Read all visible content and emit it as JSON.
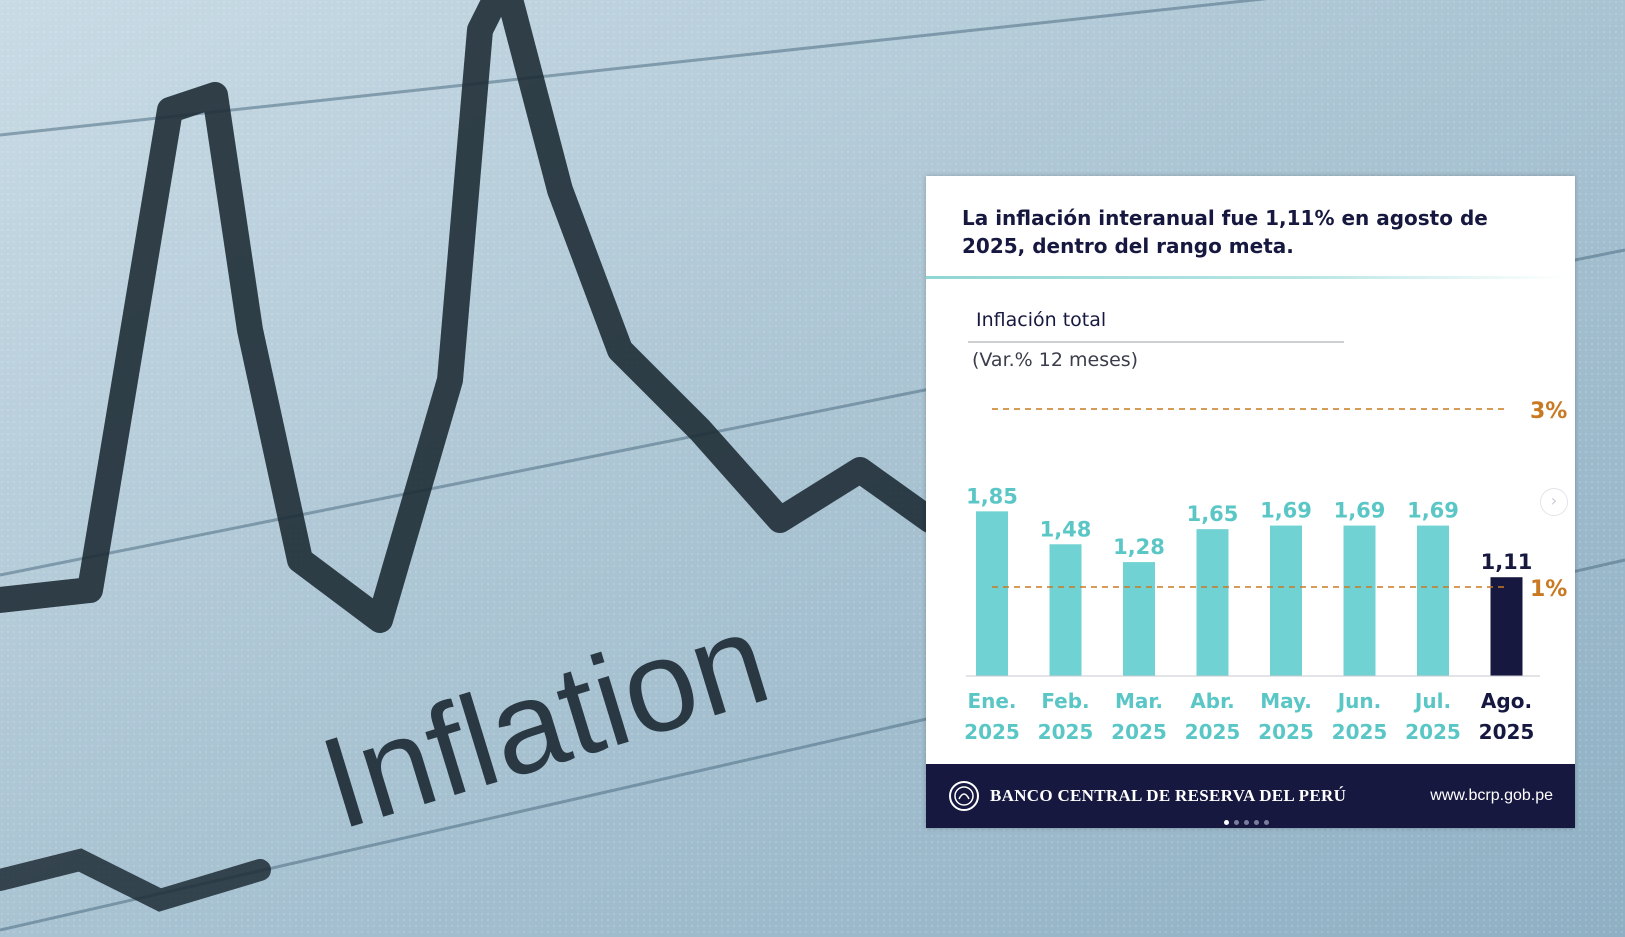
{
  "background": {
    "word": "Inflation",
    "colors": {
      "paper": "#b9cfdb",
      "ink": "#1f2d36"
    }
  },
  "card": {
    "headline": "La inflación interanual fue 1,11% en agosto de 2025, dentro del rango meta.",
    "footer": {
      "bank_name": "BANCO CENTRAL DE RESERVA DEL PERÚ",
      "url": "www.bcrp.gob.pe",
      "seal_icon": "bcrp-seal-icon",
      "pagination": {
        "count": 5,
        "active": 0
      }
    },
    "next_icon": "chevron-right-icon"
  },
  "chart_data": {
    "type": "bar",
    "title": "Inflación total",
    "subtitle": "(Var.% 12 meses)",
    "categories": [
      {
        "month": "Ene.",
        "year": "2025"
      },
      {
        "month": "Feb.",
        "year": "2025"
      },
      {
        "month": "Mar.",
        "year": "2025"
      },
      {
        "month": "Abr.",
        "year": "2025"
      },
      {
        "month": "May.",
        "year": "2025"
      },
      {
        "month": "Jun.",
        "year": "2025"
      },
      {
        "month": "Jul.",
        "year": "2025"
      },
      {
        "month": "Ago.",
        "year": "2025"
      }
    ],
    "values": [
      1.85,
      1.48,
      1.28,
      1.65,
      1.69,
      1.69,
      1.69,
      1.11
    ],
    "value_labels": [
      "1,85",
      "1,48",
      "1,28",
      "1,65",
      "1,69",
      "1,69",
      "1,69",
      "1,11"
    ],
    "highlight_index": 7,
    "reference_lines": [
      {
        "value": 3,
        "label": "3%"
      },
      {
        "value": 1,
        "label": "1%"
      }
    ],
    "ylim": [
      0,
      3
    ],
    "grid": false,
    "colors": {
      "bar": "#71d2d3",
      "highlight_bar": "#17183f",
      "reference": "#c87922",
      "label": "#5ac7c6",
      "highlight_label": "#17183f"
    }
  }
}
